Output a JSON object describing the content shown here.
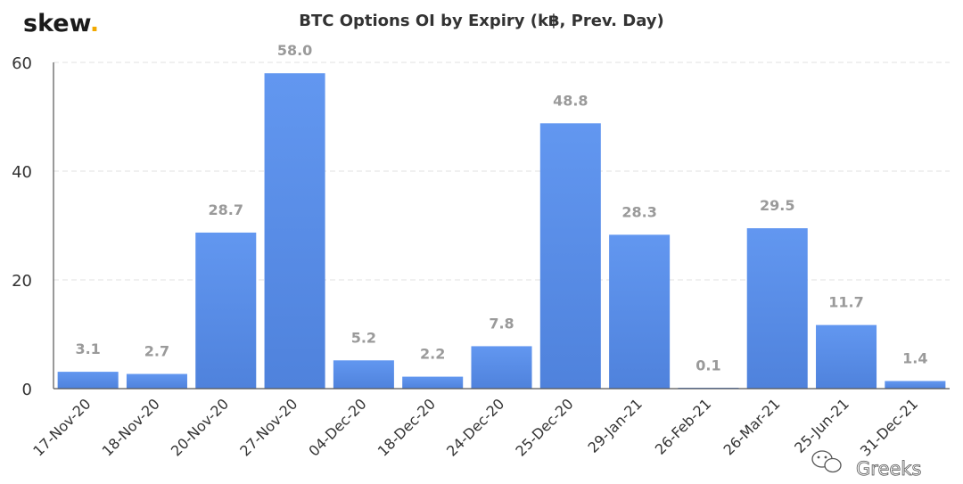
{
  "brand": {
    "name": "skew",
    "dot": ".",
    "dot_color": "#f2a900"
  },
  "watermark": {
    "text": "Greeks",
    "icon": "wechat-icon"
  },
  "colors": {
    "bar_top": "#6297f0",
    "bar_bottom": "#4f82dc",
    "grid": "#e0e0e0",
    "axis": "#555555",
    "data_label": "#9a9a9a"
  },
  "chart_data": {
    "type": "bar",
    "title": "BTC Options OI by Expiry (k฿, Prev. Day)",
    "xlabel": "",
    "ylabel": "",
    "categories": [
      "17-Nov-20",
      "18-Nov-20",
      "20-Nov-20",
      "27-Nov-20",
      "04-Dec-20",
      "18-Dec-20",
      "24-Dec-20",
      "25-Dec-20",
      "29-Jan-21",
      "26-Feb-21",
      "26-Mar-21",
      "25-Jun-21",
      "31-Dec-21"
    ],
    "values": [
      3.1,
      2.7,
      28.7,
      58.0,
      5.2,
      2.2,
      7.8,
      48.8,
      28.3,
      0.1,
      29.5,
      11.7,
      1.4
    ],
    "value_labels": [
      "3.1",
      "2.7",
      "28.7",
      "58.0",
      "5.2",
      "2.2",
      "7.8",
      "48.8",
      "28.3",
      "0.1",
      "29.5",
      "11.7",
      "1.4"
    ],
    "ylim": [
      0,
      60
    ],
    "yticks": [
      "0",
      "20",
      "40",
      "60"
    ],
    "grid": true,
    "legend": "none"
  }
}
